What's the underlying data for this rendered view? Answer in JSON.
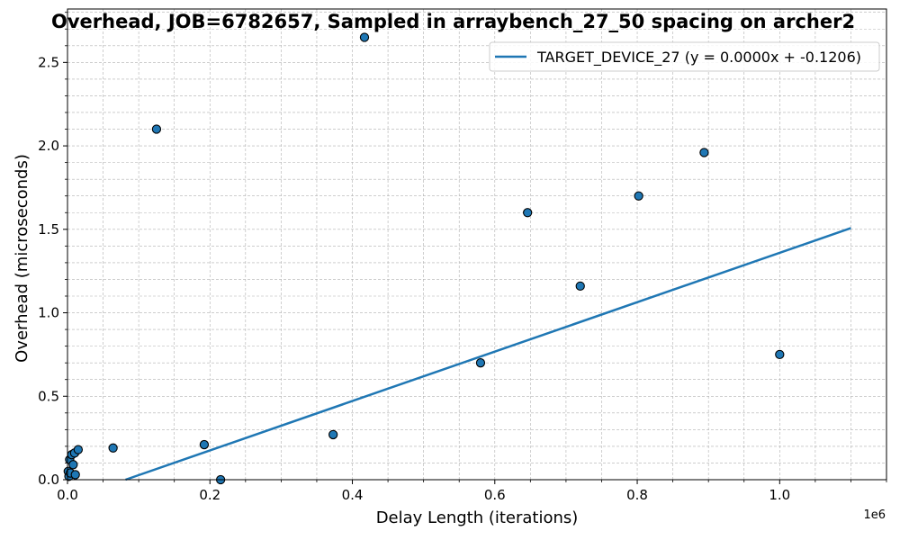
{
  "chart_data": {
    "type": "scatter",
    "title": "Overhead, JOB=6782657, Sampled in arraybench_27_50 spacing on archer2",
    "xlabel": "Delay Length (iterations)",
    "ylabel": "Overhead (microseconds)",
    "x_offset_label": "1e6",
    "xlim": [
      0,
      1150000
    ],
    "ylim": [
      0,
      2.82
    ],
    "x_ticks": [
      0.0,
      0.2,
      0.4,
      0.6,
      0.8,
      1.0
    ],
    "x_tick_labels": [
      "0.0",
      "0.2",
      "0.4",
      "0.6",
      "0.8",
      "1.0"
    ],
    "y_ticks": [
      0.0,
      0.5,
      1.0,
      1.5,
      2.0,
      2.5
    ],
    "y_tick_labels": [
      "0.0",
      "0.5",
      "1.0",
      "1.5",
      "2.0",
      "2.5"
    ],
    "grid": true,
    "legend_position": "top-right",
    "series": [
      {
        "kind": "scatter",
        "color": "#1f77b4",
        "points": [
          [
            1000,
            0.05
          ],
          [
            2000,
            0.02
          ],
          [
            3000,
            0.12
          ],
          [
            4000,
            0.04
          ],
          [
            6000,
            0.15
          ],
          [
            8000,
            0.09
          ],
          [
            10000,
            0.16
          ],
          [
            11000,
            0.03
          ],
          [
            15000,
            0.18
          ],
          [
            64000,
            0.19
          ],
          [
            125000,
            2.1
          ],
          [
            192000,
            0.21
          ],
          [
            215000,
            0.0
          ],
          [
            373000,
            0.27
          ],
          [
            417000,
            2.65
          ],
          [
            580000,
            0.7
          ],
          [
            646000,
            1.6
          ],
          [
            720000,
            1.16
          ],
          [
            802000,
            1.7
          ],
          [
            894000,
            1.96
          ],
          [
            1000000,
            0.75
          ]
        ]
      },
      {
        "kind": "line",
        "name": "TARGET_DEVICE_27 (y = 0.0000x + -0.1206)",
        "color": "#1f77b4",
        "slope": 1.48e-06,
        "intercept": -0.1206,
        "x_range": [
          0,
          1100000
        ]
      }
    ]
  }
}
